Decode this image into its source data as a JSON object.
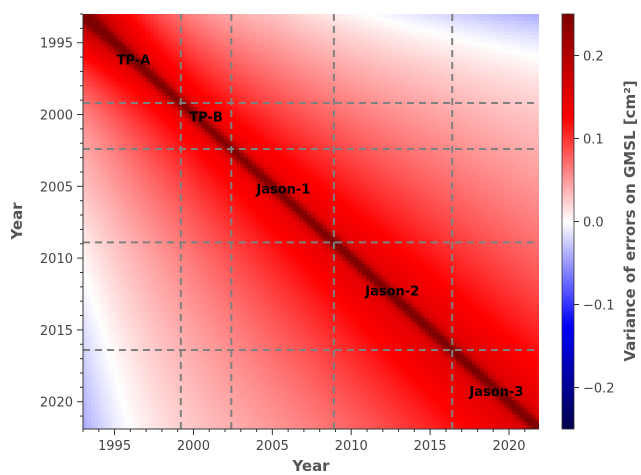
{
  "chart_data": {
    "type": "heatmap",
    "title": "",
    "xlabel": "Year",
    "ylabel": "Year",
    "colorbar_label": "Variance of errors on GMSL [cm²]",
    "colormap": "seismic",
    "x_range": [
      1993.0,
      2021.9
    ],
    "y_range": [
      1993.0,
      2021.9
    ],
    "y_inverted": true,
    "x_ticks": [
      1995,
      2000,
      2005,
      2010,
      2015,
      2020
    ],
    "y_ticks": [
      1995,
      2000,
      2005,
      2010,
      2015,
      2020
    ],
    "colorbar_range": [
      -0.25,
      0.25
    ],
    "colorbar_ticks": [
      {
        "value": 0.2,
        "label": "0.2"
      },
      {
        "value": 0.1,
        "label": "0.1"
      },
      {
        "value": 0.0,
        "label": "0.0"
      },
      {
        "value": -0.1,
        "label": "−0.1"
      },
      {
        "value": -0.2,
        "label": "−0.2"
      }
    ],
    "mission_boundaries": [
      1999.2,
      2002.4,
      2008.9,
      2016.4
    ],
    "missions": [
      {
        "name": "TP-A",
        "x": 1996.2,
        "y": 1996.5
      },
      {
        "name": "TP-B",
        "x": 2000.8,
        "y": 2000.5
      },
      {
        "name": "Jason-1",
        "x": 2005.7,
        "y": 2005.5
      },
      {
        "name": "Jason-2",
        "x": 2012.6,
        "y": 2012.6
      },
      {
        "name": "Jason-3",
        "x": 2019.2,
        "y": 2019.6
      }
    ]
  }
}
